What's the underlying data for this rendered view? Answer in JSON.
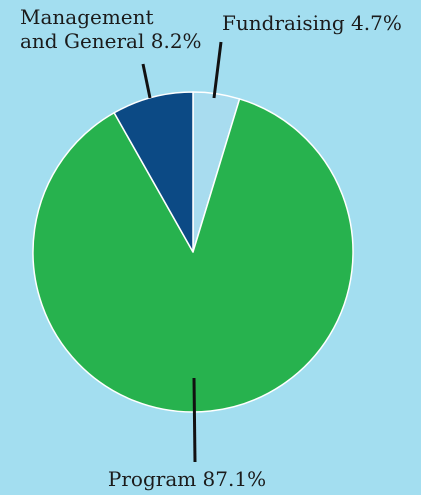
{
  "chart_data": {
    "type": "pie",
    "title": "",
    "start_angle_deg": 0,
    "direction": "clockwise",
    "colors": {
      "background": "#a3def0",
      "slice_border": "#ffffff",
      "leader_line": "#111111"
    },
    "slices": [
      {
        "name": "Fundraising",
        "value": 4.7,
        "value_label": "4.7%",
        "label_lines": [
          "Fundraising 4.7%"
        ],
        "color": "#a8dcef"
      },
      {
        "name": "Program",
        "value": 87.1,
        "value_label": "87.1%",
        "label_lines": [
          "Program 87.1%"
        ],
        "color": "#27b24e"
      },
      {
        "name": "Management and General",
        "value": 8.2,
        "value_label": "8.2%",
        "label_lines": [
          "Management",
          "and General 8.2%"
        ],
        "color": "#0c4a85"
      }
    ]
  }
}
